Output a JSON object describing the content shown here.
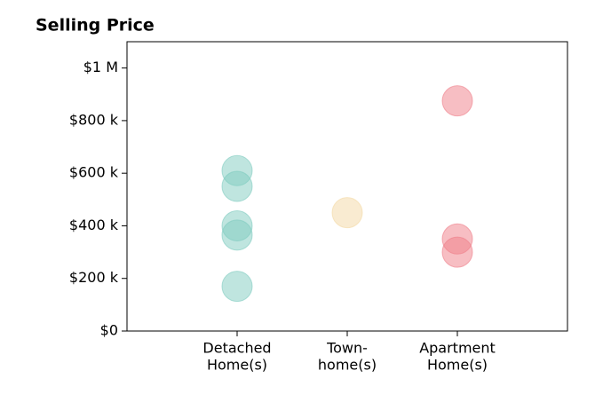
{
  "chart_data": {
    "type": "strip",
    "title": "Selling Price",
    "categories": [
      [
        "Detached",
        "Home(s)"
      ],
      [
        "Town-",
        "home(s)"
      ],
      [
        "Apartment",
        "Home(s)"
      ]
    ],
    "colors": [
      "#7fcbbf",
      "#f4d8a4",
      "#ef7d88"
    ],
    "values": [
      [
        610000,
        550000,
        400000,
        365000,
        170000
      ],
      [
        450000
      ],
      [
        875000,
        350000,
        300000
      ]
    ],
    "ylim": [
      0,
      1100000
    ],
    "yticks": [
      {
        "value": 0,
        "label": "$0"
      },
      {
        "value": 200000,
        "label": "$200 k"
      },
      {
        "value": 400000,
        "label": "$400 k"
      },
      {
        "value": 600000,
        "label": "$600 k"
      },
      {
        "value": 800000,
        "label": "$800 k"
      },
      {
        "value": 1000000,
        "label": "$1 M"
      }
    ],
    "grid": false
  }
}
